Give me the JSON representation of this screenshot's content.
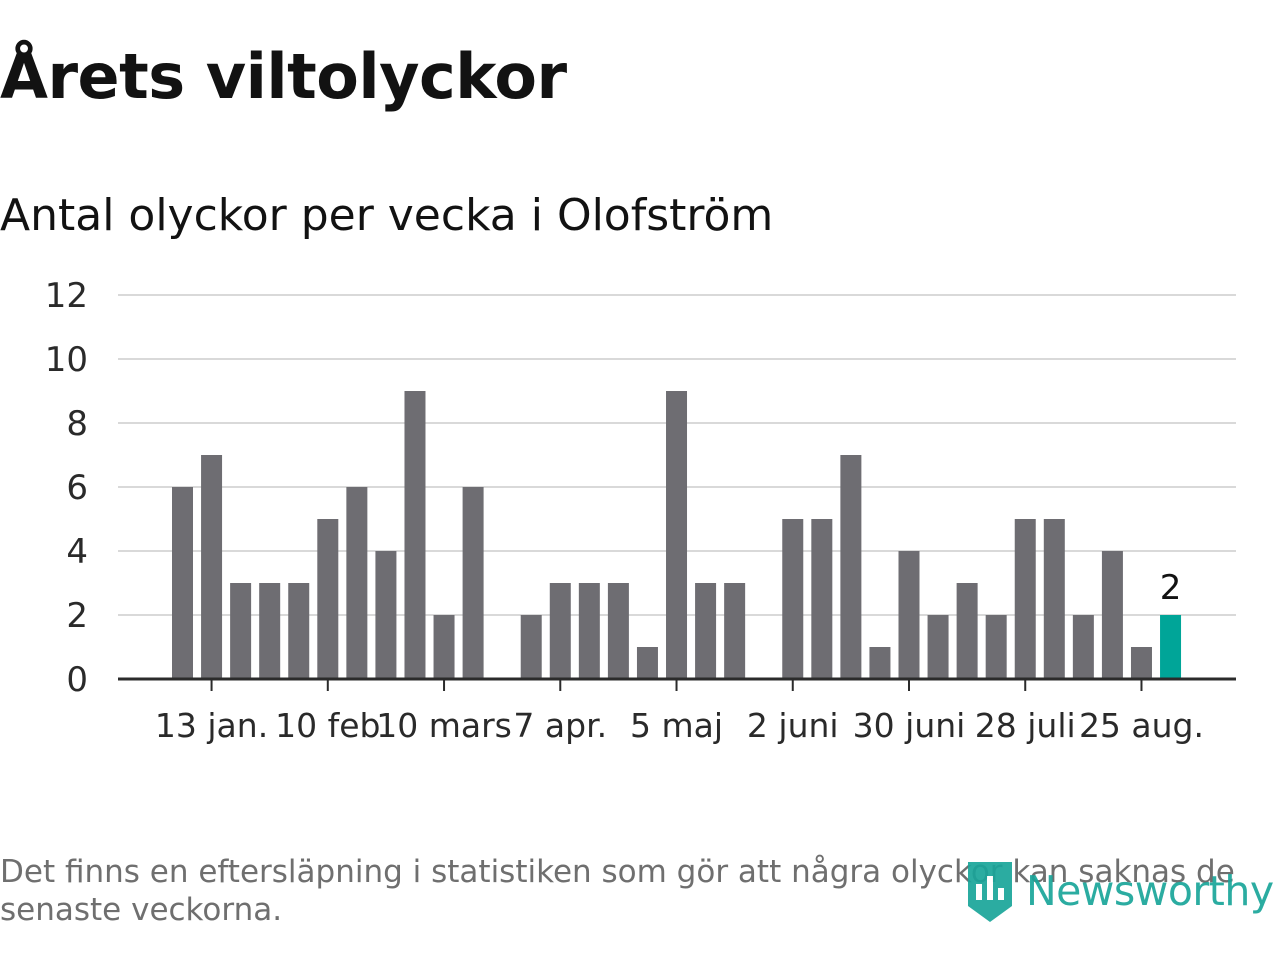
{
  "title": "Årets viltolyckor",
  "subtitle": "Antal olyckor per vecka i Olofström",
  "footnote": "Det finns en eftersläpning i statistiken som gör att några olyckor kan saknas de senaste veckorna.",
  "logo": {
    "text": "Newsworthy",
    "icon": "newsworthy-bar-chart-icon"
  },
  "colors": {
    "bar": "#6e6d72",
    "highlight": "#00a598",
    "grid": "#d9d9d9",
    "axis": "#2b2b2b",
    "logo": "#1aa59a"
  },
  "chart_data": {
    "type": "bar",
    "title": "Antal olyckor per vecka i Olofström",
    "xlabel": "",
    "ylabel": "",
    "ylim": [
      0,
      12
    ],
    "yticks": [
      0,
      2,
      4,
      6,
      8,
      10,
      12
    ],
    "grid": true,
    "xtick_labels": [
      "13 jan.",
      "10 feb",
      "10 mars",
      "7 apr.",
      "5 maj",
      "2 juni",
      "30 juni",
      "28 juli",
      "25 aug."
    ],
    "xtick_weeks": [
      2,
      6,
      10,
      14,
      18,
      22,
      26,
      30,
      34
    ],
    "weeks": [
      1,
      2,
      3,
      4,
      5,
      6,
      7,
      8,
      9,
      10,
      11,
      12,
      13,
      14,
      15,
      16,
      17,
      18,
      19,
      20,
      21,
      22,
      23,
      24,
      25,
      26,
      27,
      28,
      29,
      30,
      31,
      32,
      33,
      34,
      35
    ],
    "values": [
      6,
      7,
      3,
      3,
      3,
      5,
      6,
      4,
      9,
      2,
      6,
      0,
      2,
      3,
      3,
      3,
      1,
      9,
      3,
      3,
      0,
      5,
      5,
      7,
      1,
      4,
      2,
      3,
      2,
      5,
      5,
      2,
      4,
      1,
      2
    ],
    "highlight_index": 34,
    "highlight_label": "2"
  }
}
